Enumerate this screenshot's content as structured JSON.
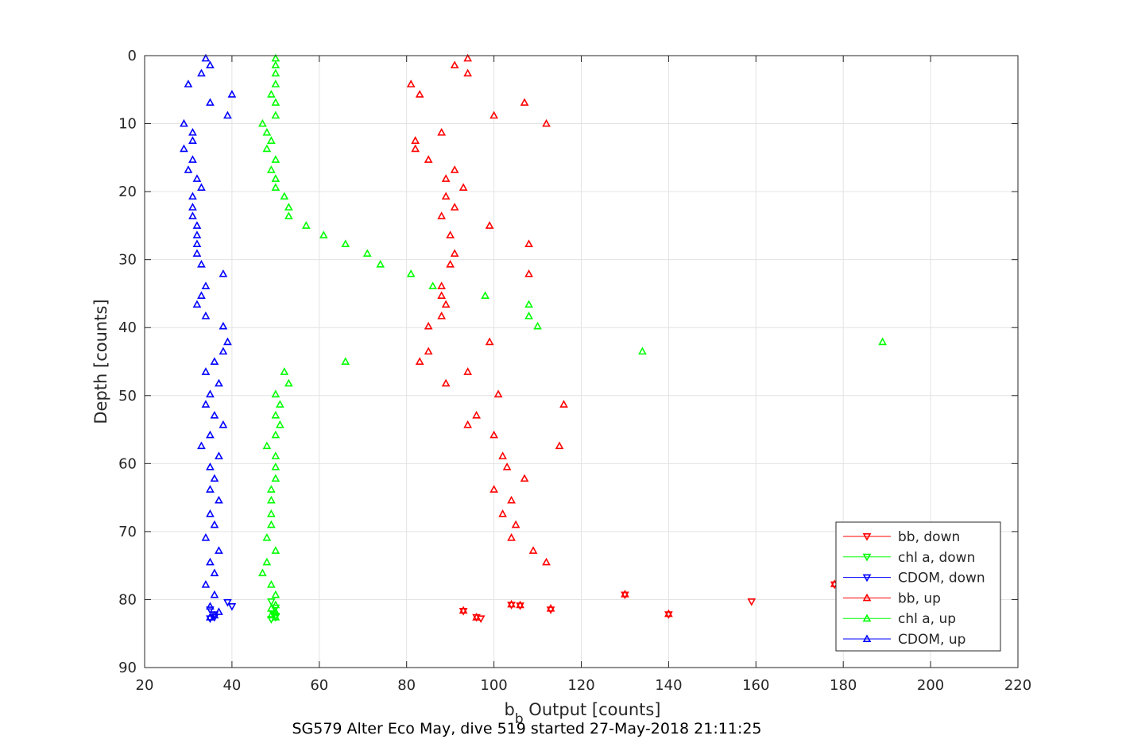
{
  "figure": {
    "caption": "SG579 Alter Eco May, dive 519 started 27-May-2018 21:11:25"
  },
  "chart_data": {
    "type": "scatter",
    "title": "",
    "xlabel_main": "b",
    "xlabel_sub": "b",
    "xlabel_rest": " Output [counts]",
    "ylabel": "Depth [counts]",
    "xlim": [
      20,
      220
    ],
    "ylim": [
      0,
      90
    ],
    "y_reversed": true,
    "grid": true,
    "legend_placement": "bottom-right",
    "x_ticks": [
      20,
      40,
      60,
      80,
      100,
      120,
      140,
      160,
      180,
      200,
      220
    ],
    "y_ticks": [
      0,
      10,
      20,
      30,
      40,
      50,
      60,
      70,
      80,
      90
    ],
    "series": [
      {
        "name": "bb, down",
        "color": "#ff0000",
        "marker": "triangle-down",
        "points": [
          [
            159,
            80.3
          ],
          [
            178,
            77.8
          ],
          [
            140,
            82.2
          ],
          [
            113,
            81.5
          ],
          [
            106,
            80.9
          ],
          [
            97,
            82.8
          ],
          [
            96,
            82.6
          ],
          [
            93,
            81.7
          ],
          [
            104,
            80.8
          ],
          [
            130,
            79.3
          ]
        ]
      },
      {
        "name": "chl a, down",
        "color": "#00ff00",
        "marker": "triangle-down",
        "points": [
          [
            49,
            80.3
          ],
          [
            50,
            81.2
          ],
          [
            49.5,
            82.2
          ],
          [
            50,
            82.6
          ],
          [
            49,
            82.9
          ],
          [
            50,
            82.4
          ]
        ]
      },
      {
        "name": "CDOM, down",
        "color": "#0000ff",
        "marker": "triangle-down",
        "points": [
          [
            39,
            80.4
          ],
          [
            40,
            81.0
          ],
          [
            36,
            82.2
          ],
          [
            35,
            82.8
          ],
          [
            36,
            82.6
          ],
          [
            35,
            81.5
          ]
        ]
      },
      {
        "name": "bb, up",
        "color": "#ff0000",
        "marker": "triangle-up",
        "points": [
          [
            94,
            0.4
          ],
          [
            91,
            1.4
          ],
          [
            94,
            2.6
          ],
          [
            81,
            4.2
          ],
          [
            83,
            5.7
          ],
          [
            107,
            6.9
          ],
          [
            100,
            8.8
          ],
          [
            112,
            10.0
          ],
          [
            88,
            11.3
          ],
          [
            82,
            12.5
          ],
          [
            82,
            13.7
          ],
          [
            85,
            15.3
          ],
          [
            91,
            16.8
          ],
          [
            89,
            18.1
          ],
          [
            93,
            19.4
          ],
          [
            89,
            20.7
          ],
          [
            91,
            22.3
          ],
          [
            88,
            23.6
          ],
          [
            99,
            25.0
          ],
          [
            90,
            26.4
          ],
          [
            108,
            27.7
          ],
          [
            91,
            29.1
          ],
          [
            90,
            30.7
          ],
          [
            108,
            32.1
          ],
          [
            88,
            33.9
          ],
          [
            88,
            35.3
          ],
          [
            89,
            36.6
          ],
          [
            88,
            38.3
          ],
          [
            85,
            39.8
          ],
          [
            99,
            42.1
          ],
          [
            85,
            43.5
          ],
          [
            83,
            45.0
          ],
          [
            94,
            46.5
          ],
          [
            89,
            48.2
          ],
          [
            101,
            49.8
          ],
          [
            116,
            51.3
          ],
          [
            96,
            52.9
          ],
          [
            94,
            54.3
          ],
          [
            100,
            55.8
          ],
          [
            115,
            57.4
          ],
          [
            102,
            58.9
          ],
          [
            103,
            60.5
          ],
          [
            107,
            62.2
          ],
          [
            100,
            63.8
          ],
          [
            104,
            65.4
          ],
          [
            102,
            67.4
          ],
          [
            105,
            69.0
          ],
          [
            104,
            70.9
          ],
          [
            109,
            72.8
          ],
          [
            112,
            74.5
          ],
          [
            178,
            77.7
          ],
          [
            130,
            79.2
          ],
          [
            104,
            80.7
          ],
          [
            106,
            80.8
          ],
          [
            113,
            81.3
          ],
          [
            93,
            81.6
          ],
          [
            96,
            82.6
          ],
          [
            140,
            82.1
          ]
        ]
      },
      {
        "name": "chl a, up",
        "color": "#00ff00",
        "marker": "triangle-up",
        "points": [
          [
            50,
            0.4
          ],
          [
            50,
            1.4
          ],
          [
            50,
            2.6
          ],
          [
            50,
            4.2
          ],
          [
            49,
            5.7
          ],
          [
            50,
            6.9
          ],
          [
            50,
            8.8
          ],
          [
            47,
            10.0
          ],
          [
            48,
            11.3
          ],
          [
            49,
            12.5
          ],
          [
            48,
            13.7
          ],
          [
            50,
            15.3
          ],
          [
            49,
            16.8
          ],
          [
            50,
            18.1
          ],
          [
            50,
            19.4
          ],
          [
            52,
            20.7
          ],
          [
            53,
            22.3
          ],
          [
            53,
            23.6
          ],
          [
            57,
            25.0
          ],
          [
            61,
            26.4
          ],
          [
            66,
            27.7
          ],
          [
            71,
            29.1
          ],
          [
            74,
            30.7
          ],
          [
            81,
            32.1
          ],
          [
            86,
            33.9
          ],
          [
            98,
            35.3
          ],
          [
            108,
            36.6
          ],
          [
            108,
            38.3
          ],
          [
            110,
            39.8
          ],
          [
            189,
            42.1
          ],
          [
            134,
            43.5
          ],
          [
            66,
            45.0
          ],
          [
            52,
            46.5
          ],
          [
            53,
            48.2
          ],
          [
            50,
            49.8
          ],
          [
            51,
            51.3
          ],
          [
            50,
            52.9
          ],
          [
            51,
            54.3
          ],
          [
            50,
            55.8
          ],
          [
            48,
            57.4
          ],
          [
            50,
            58.9
          ],
          [
            50,
            60.5
          ],
          [
            50,
            62.2
          ],
          [
            49,
            63.8
          ],
          [
            49,
            65.4
          ],
          [
            49,
            67.4
          ],
          [
            49,
            69.0
          ],
          [
            48,
            70.9
          ],
          [
            50,
            72.8
          ],
          [
            48,
            74.5
          ],
          [
            47,
            76.1
          ],
          [
            49,
            77.8
          ],
          [
            50,
            79.3
          ],
          [
            50,
            80.8
          ],
          [
            49,
            81.3
          ],
          [
            50,
            81.8
          ],
          [
            49,
            82.3
          ],
          [
            50,
            82.6
          ]
        ]
      },
      {
        "name": "CDOM, up",
        "color": "#0000ff",
        "marker": "triangle-up",
        "points": [
          [
            34,
            0.4
          ],
          [
            35,
            1.4
          ],
          [
            33,
            2.6
          ],
          [
            30,
            4.2
          ],
          [
            40,
            5.7
          ],
          [
            35,
            6.9
          ],
          [
            39,
            8.8
          ],
          [
            29,
            10.0
          ],
          [
            31,
            11.3
          ],
          [
            31,
            12.5
          ],
          [
            29,
            13.7
          ],
          [
            31,
            15.3
          ],
          [
            30,
            16.8
          ],
          [
            32,
            18.1
          ],
          [
            33,
            19.4
          ],
          [
            31,
            20.7
          ],
          [
            31,
            22.3
          ],
          [
            31,
            23.6
          ],
          [
            32,
            25.0
          ],
          [
            32,
            26.4
          ],
          [
            32,
            27.7
          ],
          [
            32,
            29.1
          ],
          [
            33,
            30.7
          ],
          [
            38,
            32.1
          ],
          [
            34,
            33.9
          ],
          [
            33,
            35.3
          ],
          [
            32,
            36.6
          ],
          [
            34,
            38.3
          ],
          [
            38,
            39.8
          ],
          [
            39,
            42.1
          ],
          [
            38,
            43.5
          ],
          [
            36,
            45.0
          ],
          [
            34,
            46.5
          ],
          [
            37,
            48.2
          ],
          [
            35,
            49.8
          ],
          [
            34,
            51.3
          ],
          [
            36,
            52.9
          ],
          [
            38,
            54.3
          ],
          [
            35,
            55.8
          ],
          [
            33,
            57.4
          ],
          [
            37,
            58.9
          ],
          [
            35,
            60.5
          ],
          [
            36,
            62.2
          ],
          [
            35,
            63.8
          ],
          [
            37,
            65.4
          ],
          [
            35,
            67.4
          ],
          [
            36,
            69.0
          ],
          [
            34,
            70.9
          ],
          [
            37,
            72.8
          ],
          [
            35,
            74.5
          ],
          [
            36,
            76.1
          ],
          [
            34,
            77.8
          ],
          [
            36,
            79.3
          ],
          [
            35,
            81.0
          ],
          [
            37,
            81.8
          ],
          [
            36,
            82.3
          ],
          [
            35,
            82.6
          ]
        ]
      }
    ]
  }
}
